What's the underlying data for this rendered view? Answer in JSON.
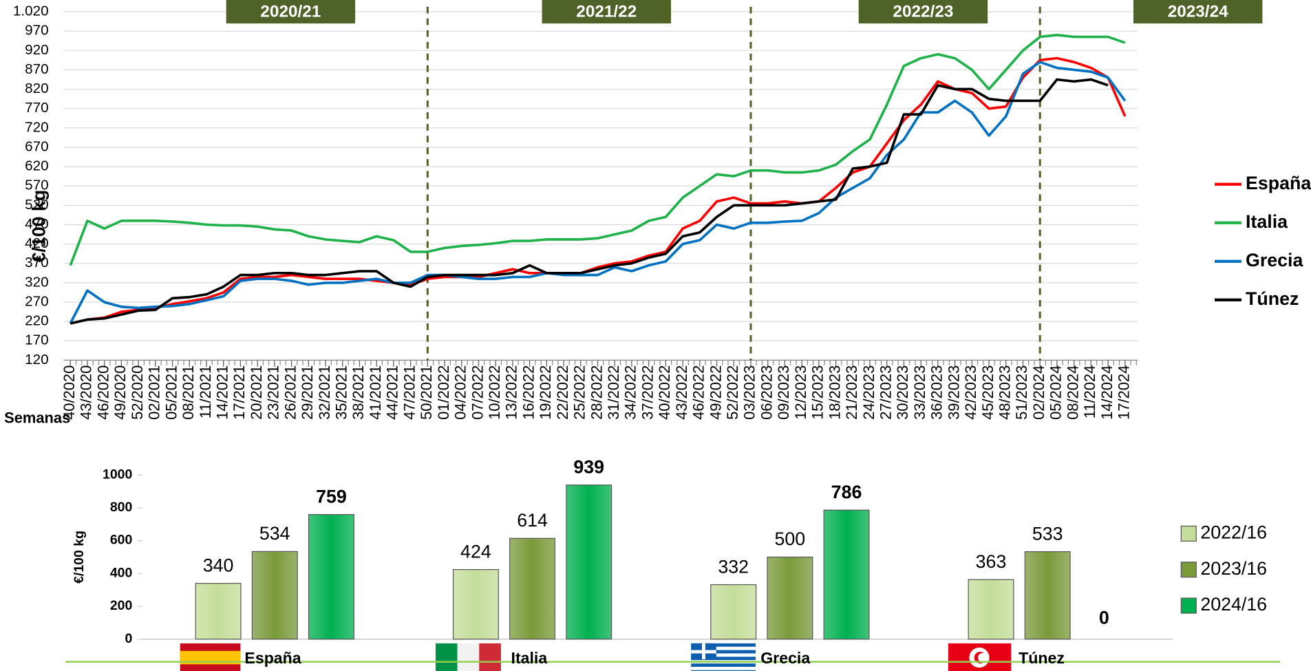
{
  "chart_data": [
    {
      "type": "line",
      "ylabel": "€/100 kg",
      "xlabel": "Semanas",
      "annotations": [
        "2020/21",
        "2021/22",
        "2022/23",
        "2023/24"
      ],
      "dividers": [
        "50/2021",
        "03/2023",
        "02/2024"
      ],
      "categories": [
        "40/2020",
        "43/2020",
        "46/2020",
        "49/2020",
        "52/2020",
        "02/2021",
        "05/2021",
        "08/2021",
        "11/2021",
        "14/2021",
        "17/2021",
        "20/2021",
        "23/2021",
        "26/2021",
        "29/2021",
        "32/2021",
        "35/2021",
        "38/2021",
        "41/2021",
        "44/2021",
        "47/2021",
        "50/2021",
        "01/2022",
        "04/2022",
        "07/2022",
        "10/2022",
        "13/2022",
        "16/2022",
        "19/2022",
        "22/2022",
        "25/2022",
        "28/2022",
        "31/2022",
        "34/2022",
        "37/2022",
        "40/2022",
        "43/2022",
        "46/2022",
        "49/2022",
        "52/2022",
        "03/2023",
        "06/2023",
        "09/2023",
        "12/2023",
        "15/2023",
        "18/2023",
        "21/2023",
        "24/2023",
        "27/2023",
        "30/2023",
        "33/2023",
        "36/2023",
        "39/2023",
        "42/2023",
        "45/2023",
        "48/2023",
        "51/2023",
        "02/2024",
        "05/2024",
        "08/2024",
        "11/2024",
        "14/2024",
        "17/2024"
      ],
      "series": [
        {
          "name": "España",
          "color": "#ff0000",
          "values": [
            215,
            225,
            230,
            245,
            250,
            255,
            265,
            272,
            280,
            295,
            330,
            335,
            335,
            340,
            335,
            330,
            330,
            330,
            325,
            320,
            315,
            330,
            335,
            335,
            335,
            345,
            355,
            345,
            345,
            345,
            345,
            360,
            370,
            375,
            390,
            400,
            460,
            480,
            530,
            540,
            525,
            525,
            530,
            525,
            530,
            565,
            605,
            620,
            680,
            740,
            780,
            840,
            820,
            810,
            770,
            775,
            850,
            895,
            900,
            890,
            875,
            850,
            750
          ]
        },
        {
          "name": "Italia",
          "color": "#1fb14a",
          "values": [
            365,
            480,
            460,
            480,
            480,
            480,
            478,
            475,
            470,
            468,
            468,
            465,
            458,
            455,
            440,
            432,
            428,
            425,
            440,
            430,
            400,
            400,
            410,
            415,
            418,
            422,
            428,
            428,
            432,
            432,
            432,
            435,
            445,
            455,
            480,
            490,
            540,
            570,
            600,
            595,
            610,
            610,
            605,
            605,
            610,
            625,
            660,
            690,
            780,
            880,
            900,
            910,
            900,
            870,
            820,
            870,
            920,
            955,
            960,
            955,
            955,
            955,
            940
          ]
        },
        {
          "name": "Grecia",
          "color": "#0070c0",
          "values": [
            215,
            300,
            270,
            258,
            255,
            258,
            260,
            265,
            275,
            285,
            325,
            330,
            330,
            325,
            315,
            320,
            320,
            325,
            330,
            320,
            320,
            340,
            340,
            335,
            330,
            330,
            335,
            335,
            345,
            340,
            340,
            340,
            360,
            350,
            365,
            375,
            420,
            430,
            470,
            460,
            475,
            475,
            478,
            480,
            500,
            540,
            565,
            590,
            650,
            690,
            760,
            760,
            790,
            760,
            700,
            750,
            860,
            890,
            875,
            870,
            865,
            850,
            790
          ]
        },
        {
          "name": "Túnez",
          "color": "#000000",
          "values": [
            215,
            225,
            228,
            238,
            248,
            250,
            280,
            283,
            290,
            310,
            340,
            340,
            345,
            345,
            340,
            340,
            345,
            350,
            350,
            320,
            310,
            335,
            340,
            340,
            340,
            340,
            345,
            365,
            345,
            345,
            345,
            355,
            365,
            370,
            385,
            395,
            440,
            450,
            490,
            520,
            520,
            520,
            520,
            525,
            530,
            535,
            615,
            620,
            630,
            755,
            755,
            830,
            820,
            820,
            795,
            790,
            790,
            790,
            845,
            840,
            845,
            830,
            null
          ]
        }
      ],
      "ylim": [
        120,
        1020
      ],
      "yticks": [
        120,
        170,
        220,
        270,
        320,
        370,
        420,
        470,
        520,
        570,
        620,
        670,
        720,
        770,
        820,
        870,
        920,
        970,
        {
          "value": 1020,
          "label": "1.020"
        }
      ],
      "grid": true,
      "legend": "right"
    },
    {
      "type": "bar",
      "ylabel": "€/100 kg",
      "categories": [
        "España",
        "Italia",
        "Grecia",
        "Túnez"
      ],
      "series": [
        {
          "name": "2022/16",
          "color": "#c4dd9a",
          "values": [
            340,
            424,
            332,
            363
          ]
        },
        {
          "name": "2023/16",
          "color": "#7a9a3a",
          "values": [
            534,
            614,
            500,
            533
          ]
        },
        {
          "name": "2024/16",
          "color": "#00b050",
          "values": [
            759,
            939,
            786,
            0
          ]
        }
      ],
      "ylim": [
        0,
        1000
      ],
      "yticks": [
        0,
        200,
        400,
        600,
        800,
        1000
      ],
      "grid": false,
      "legend": "right"
    }
  ]
}
